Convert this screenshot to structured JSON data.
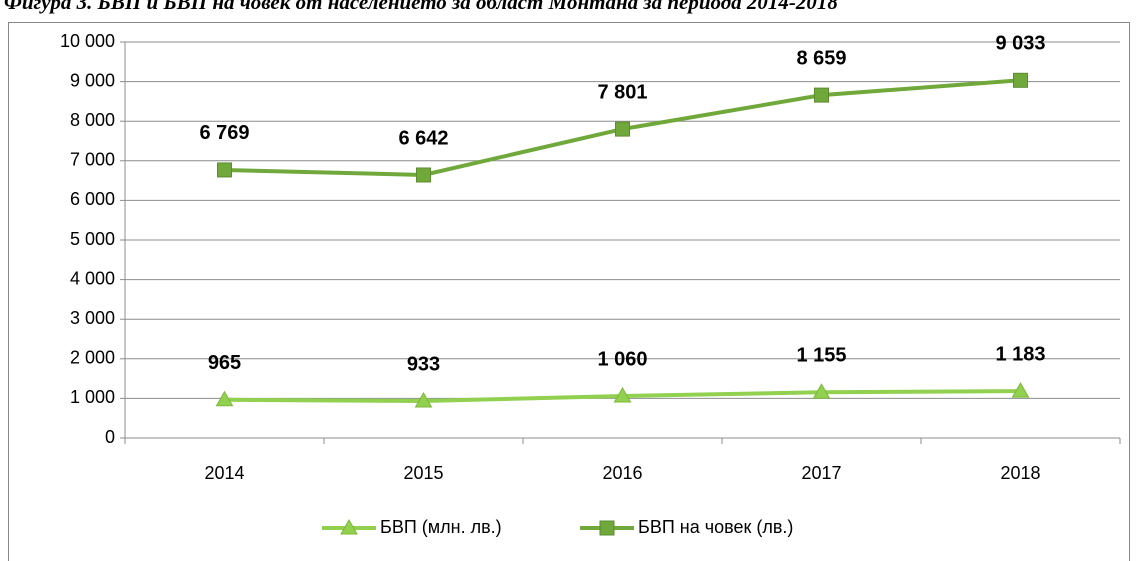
{
  "chart_data": {
    "type": "line",
    "title": "Фигура 3. БВП и БВП на човек от населението за област Монтана за периода 2014-2018",
    "categories": [
      "2014",
      "2015",
      "2016",
      "2017",
      "2018"
    ],
    "series": [
      {
        "name": "БВП (млн. лв.)",
        "color": "#92d050",
        "marker": "triangle",
        "values": [
          965,
          933,
          1060,
          1155,
          1183
        ],
        "value_labels": [
          "965",
          "933",
          "1 060",
          "1 155",
          "1 183"
        ]
      },
      {
        "name": "БВП на човек (лв.)",
        "color": "#70a83b",
        "marker": "square",
        "values": [
          6769,
          6642,
          7801,
          8659,
          9033
        ],
        "value_labels": [
          "6 769",
          "6 642",
          "7 801",
          "8 659",
          "9 033"
        ]
      }
    ],
    "ylim": [
      0,
      10000
    ],
    "yticks": [
      {
        "value": 0,
        "label": "0"
      },
      {
        "value": 1000,
        "label": "1 000"
      },
      {
        "value": 2000,
        "label": "2 000"
      },
      {
        "value": 3000,
        "label": "3 000"
      },
      {
        "value": 4000,
        "label": "4 000"
      },
      {
        "value": 5000,
        "label": "5 000"
      },
      {
        "value": 6000,
        "label": "6 000"
      },
      {
        "value": 7000,
        "label": "7 000"
      },
      {
        "value": 8000,
        "label": "8 000"
      },
      {
        "value": 9000,
        "label": "9 000"
      },
      {
        "value": 10000,
        "label": "10 000"
      }
    ],
    "grid": true,
    "legend": "bottom"
  }
}
